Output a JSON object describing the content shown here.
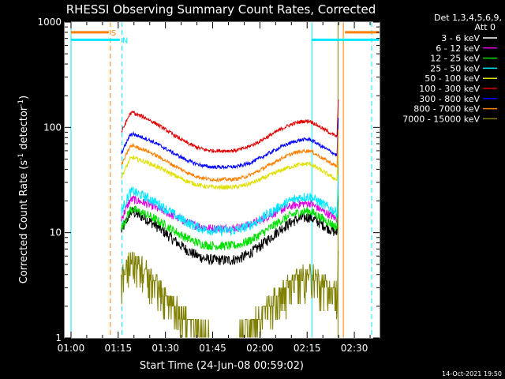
{
  "chart_data": {
    "type": "line",
    "title": "RHESSI Observing Summary Count Rates, Corrected",
    "ylabel_main": "Corrected Count Rate (s",
    "ylabel_sup1": "-1",
    "ylabel_mid": " detector",
    "ylabel_sup2": "-1",
    "ylabel_end": ")",
    "xlabel": "Start Time (24-Jun-08 00:59:02)",
    "yscale": "log",
    "ylim": [
      1,
      1000
    ],
    "xlim_minutes": [
      -2,
      98
    ],
    "x_ticks": [
      "01:00",
      "01:15",
      "01:30",
      "01:45",
      "02:00",
      "02:15",
      "02:30"
    ],
    "x_tick_minutes": [
      0,
      15,
      30,
      45,
      60,
      75,
      90
    ],
    "y_ticks": [
      "1",
      "10",
      "100",
      "1000"
    ],
    "y_tick_values": [
      1,
      10,
      100,
      1000
    ],
    "legend_header": [
      "Det 1,3,4,5,6,9,",
      "Att 0"
    ],
    "legend_position": "right",
    "timestamp": "14-Oct-2021 19:50",
    "data_start_min": 16,
    "data_end_min": 84.5,
    "series": [
      {
        "name": "3 - 6 keV",
        "color": "#000000",
        "amp": [
          16,
          5.5,
          14
        ],
        "noise": 0.12
      },
      {
        "name": "6 - 12 keV",
        "color": "#e000e0",
        "amp": [
          21,
          11,
          19
        ],
        "noise": 0.09
      },
      {
        "name": "12 - 25 keV",
        "color": "#00e000",
        "amp": [
          17,
          7.5,
          16
        ],
        "noise": 0.1
      },
      {
        "name": "25 - 50 keV",
        "color": "#00e8ff",
        "amp": [
          25,
          10.5,
          22
        ],
        "noise": 0.11
      },
      {
        "name": "50 - 100 keV",
        "color": "#e0e000",
        "amp": [
          52,
          27,
          45
        ],
        "noise": 0.05
      },
      {
        "name": "100 - 300 keV",
        "color": "#e00000",
        "amp": [
          140,
          60,
          115
        ],
        "noise": 0.04
      },
      {
        "name": "300 - 800 keV",
        "color": "#0000ff",
        "amp": [
          88,
          42,
          77
        ],
        "noise": 0.04
      },
      {
        "name": "800 - 7000 keV",
        "color": "#ff8000",
        "amp": [
          68,
          32,
          60
        ],
        "noise": 0.04
      },
      {
        "name": "7000 - 15000 keV",
        "color": "#808000",
        "amp": [
          6,
          1.05,
          4.2
        ],
        "noise": 0.18
      }
    ],
    "flags": {
      "S": {
        "label": "S",
        "color": "#ff8000",
        "bar_min": [
          0,
          12
        ],
        "bar_min2": [
          87,
          98
        ],
        "value": 800
      },
      "N": {
        "label": "N",
        "color": "#00e8ff",
        "bar_min": [
          0,
          15.5
        ],
        "bar_min2": [
          76.5,
          98
        ],
        "value": 680
      }
    },
    "vlines": [
      {
        "min": 12.5,
        "color": "#ff8000",
        "style": "dashed"
      },
      {
        "min": 16.2,
        "color": "#00e8ff",
        "style": "dashed"
      },
      {
        "min": 76.5,
        "color": "#00e8ff",
        "style": "solid"
      },
      {
        "min": 84.8,
        "color": "#808000",
        "style": "solid"
      },
      {
        "min": 86.5,
        "color": "#ff8000",
        "style": "solid"
      },
      {
        "min": 95.5,
        "color": "#00e8ff",
        "style": "dashed"
      },
      {
        "min": 0,
        "color": "#00e8ff",
        "style": "solid"
      }
    ]
  }
}
